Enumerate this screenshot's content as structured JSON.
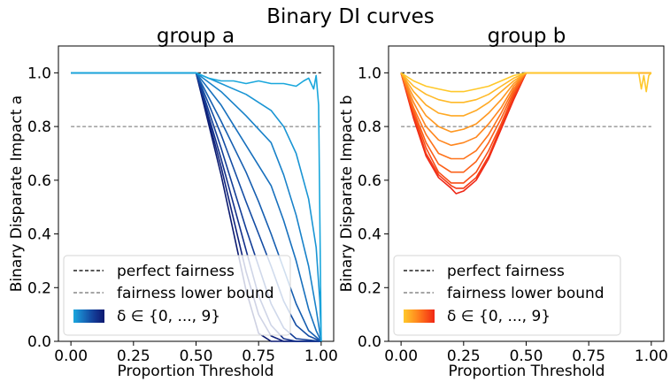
{
  "figure_title": "Binary DI curves",
  "chart_data": [
    {
      "type": "line",
      "title": "group a",
      "xlabel": "Proportion Threshold",
      "ylabel": "Binary Disparate Impact a",
      "xlim": [
        -0.05,
        1.05
      ],
      "ylim": [
        0.0,
        1.1
      ],
      "xticks": [
        "0.00",
        "0.25",
        "0.50",
        "0.75",
        "1.00"
      ],
      "yticks": [
        "0.0",
        "0.2",
        "0.4",
        "0.6",
        "0.8",
        "1.0"
      ],
      "grid": false,
      "legend_position": "lower-left",
      "legend": [
        "perfect fairness",
        "fairness lower bound",
        "δ ∈ {0, ..., 9}"
      ],
      "reference_lines": [
        {
          "name": "perfect fairness",
          "y": 1.0,
          "style": "dashed",
          "color": "#222222"
        },
        {
          "name": "fairness lower bound",
          "y": 0.8,
          "style": "dashed",
          "color": "#888888"
        }
      ],
      "colormap": [
        "#1aa7dc",
        "#1a95d4",
        "#1982c9",
        "#1870bd",
        "#165eb0",
        "#144ca3",
        "#133d96",
        "#122f89",
        "#10237c",
        "#0b1a70"
      ],
      "series": [
        {
          "x": [
            0.0,
            0.5,
            0.55,
            0.6,
            0.65,
            0.7,
            0.75,
            0.8,
            0.85,
            0.9,
            0.93,
            0.95,
            0.97,
            0.98,
            0.99,
            1.0
          ],
          "y": [
            1.0,
            1.0,
            0.98,
            0.97,
            0.97,
            0.96,
            0.97,
            0.96,
            0.96,
            0.95,
            0.97,
            0.98,
            0.94,
            0.99,
            0.88,
            0.0
          ]
        },
        {
          "x": [
            0.0,
            0.5,
            0.6,
            0.7,
            0.8,
            0.85,
            0.9,
            0.95,
            0.98,
            0.995,
            1.0
          ],
          "y": [
            1.0,
            1.0,
            0.96,
            0.92,
            0.86,
            0.8,
            0.7,
            0.53,
            0.35,
            0.15,
            0.0
          ]
        },
        {
          "x": [
            0.0,
            0.5,
            0.6,
            0.7,
            0.8,
            0.85,
            0.9,
            0.95,
            0.98,
            1.0
          ],
          "y": [
            1.0,
            1.0,
            0.93,
            0.84,
            0.74,
            0.62,
            0.47,
            0.28,
            0.12,
            0.0
          ]
        },
        {
          "x": [
            0.0,
            0.5,
            0.6,
            0.7,
            0.8,
            0.85,
            0.9,
            0.95,
            0.98,
            1.0
          ],
          "y": [
            1.0,
            1.0,
            0.88,
            0.73,
            0.58,
            0.45,
            0.3,
            0.12,
            0.04,
            0.0
          ]
        },
        {
          "x": [
            0.0,
            0.5,
            0.6,
            0.7,
            0.75,
            0.8,
            0.85,
            0.9,
            0.95,
            1.0
          ],
          "y": [
            1.0,
            1.0,
            0.82,
            0.63,
            0.52,
            0.4,
            0.27,
            0.14,
            0.04,
            0.0
          ]
        },
        {
          "x": [
            0.0,
            0.5,
            0.6,
            0.7,
            0.75,
            0.8,
            0.85,
            0.9,
            0.95,
            1.0
          ],
          "y": [
            1.0,
            1.0,
            0.77,
            0.52,
            0.4,
            0.28,
            0.15,
            0.06,
            0.02,
            0.0
          ]
        },
        {
          "x": [
            0.0,
            0.5,
            0.6,
            0.7,
            0.75,
            0.8,
            0.85,
            0.9,
            1.0
          ],
          "y": [
            1.0,
            1.0,
            0.72,
            0.42,
            0.28,
            0.14,
            0.05,
            0.01,
            0.0
          ]
        },
        {
          "x": [
            0.0,
            0.5,
            0.6,
            0.7,
            0.75,
            0.8,
            0.85,
            0.9,
            1.0
          ],
          "y": [
            1.0,
            1.0,
            0.68,
            0.34,
            0.17,
            0.06,
            0.01,
            0.0,
            0.0
          ]
        },
        {
          "x": [
            0.0,
            0.5,
            0.6,
            0.7,
            0.75,
            0.8,
            0.85,
            1.0
          ],
          "y": [
            1.0,
            1.0,
            0.65,
            0.26,
            0.1,
            0.02,
            0.0,
            0.0
          ]
        },
        {
          "x": [
            0.0,
            0.5,
            0.6,
            0.7,
            0.75,
            0.8,
            1.0
          ],
          "y": [
            1.0,
            1.0,
            0.62,
            0.19,
            0.03,
            0.0,
            0.0
          ]
        }
      ]
    },
    {
      "type": "line",
      "title": "group b",
      "xlabel": "Proportion Threshold",
      "ylabel": "Binary Disparate Impact b",
      "xlim": [
        -0.05,
        1.05
      ],
      "ylim": [
        0.0,
        1.1
      ],
      "xticks": [
        "0.00",
        "0.25",
        "0.50",
        "0.75",
        "1.00"
      ],
      "yticks": [
        "0.0",
        "0.2",
        "0.4",
        "0.6",
        "0.8",
        "1.0"
      ],
      "grid": false,
      "legend_position": "lower-left",
      "legend": [
        "perfect fairness",
        "fairness lower bound",
        "δ ∈ {0, ..., 9}"
      ],
      "reference_lines": [
        {
          "name": "perfect fairness",
          "y": 1.0,
          "style": "dashed",
          "color": "#222222"
        },
        {
          "name": "fairness lower bound",
          "y": 0.8,
          "style": "dashed",
          "color": "#888888"
        }
      ],
      "colormap": [
        "#ffc82a",
        "#ffb927",
        "#ffa924",
        "#ff9821",
        "#ff861e",
        "#fe731b",
        "#fb6019",
        "#f84d17",
        "#f43a16",
        "#ef2615"
      ],
      "series": [
        {
          "x": [
            0.0,
            0.05,
            0.1,
            0.15,
            0.2,
            0.25,
            0.3,
            0.35,
            0.4,
            0.45,
            0.5,
            0.95,
            0.96,
            0.97,
            0.98,
            0.99,
            1.0
          ],
          "y": [
            1.0,
            0.97,
            0.95,
            0.94,
            0.93,
            0.93,
            0.94,
            0.95,
            0.97,
            0.99,
            1.0,
            1.0,
            0.94,
            0.99,
            0.93,
            0.99,
            1.0
          ]
        },
        {
          "x": [
            0.0,
            0.05,
            0.1,
            0.15,
            0.2,
            0.25,
            0.3,
            0.35,
            0.4,
            0.45,
            0.5,
            1.0
          ],
          "y": [
            1.0,
            0.95,
            0.92,
            0.9,
            0.89,
            0.89,
            0.9,
            0.92,
            0.95,
            0.98,
            1.0,
            1.0
          ]
        },
        {
          "x": [
            0.0,
            0.05,
            0.1,
            0.15,
            0.2,
            0.25,
            0.3,
            0.35,
            0.4,
            0.45,
            0.5,
            1.0
          ],
          "y": [
            1.0,
            0.93,
            0.88,
            0.85,
            0.84,
            0.84,
            0.86,
            0.89,
            0.93,
            0.97,
            1.0,
            1.0
          ]
        },
        {
          "x": [
            0.0,
            0.05,
            0.1,
            0.15,
            0.2,
            0.25,
            0.3,
            0.35,
            0.4,
            0.45,
            0.5,
            1.0
          ],
          "y": [
            1.0,
            0.91,
            0.84,
            0.8,
            0.78,
            0.79,
            0.81,
            0.85,
            0.9,
            0.96,
            1.0,
            1.0
          ]
        },
        {
          "x": [
            0.0,
            0.05,
            0.1,
            0.15,
            0.2,
            0.25,
            0.3,
            0.35,
            0.4,
            0.45,
            0.5,
            1.0
          ],
          "y": [
            1.0,
            0.89,
            0.8,
            0.75,
            0.73,
            0.74,
            0.76,
            0.81,
            0.87,
            0.95,
            1.0,
            1.0
          ]
        },
        {
          "x": [
            0.0,
            0.05,
            0.1,
            0.15,
            0.2,
            0.25,
            0.3,
            0.35,
            0.4,
            0.45,
            0.5,
            1.0
          ],
          "y": [
            1.0,
            0.87,
            0.77,
            0.7,
            0.68,
            0.68,
            0.71,
            0.77,
            0.85,
            0.94,
            1.0,
            1.0
          ]
        },
        {
          "x": [
            0.0,
            0.05,
            0.1,
            0.15,
            0.2,
            0.25,
            0.3,
            0.35,
            0.4,
            0.45,
            0.5,
            1.0
          ],
          "y": [
            1.0,
            0.86,
            0.74,
            0.66,
            0.63,
            0.63,
            0.67,
            0.74,
            0.83,
            0.93,
            1.0,
            1.0
          ]
        },
        {
          "x": [
            0.0,
            0.05,
            0.1,
            0.15,
            0.2,
            0.25,
            0.3,
            0.35,
            0.4,
            0.45,
            0.5,
            1.0
          ],
          "y": [
            1.0,
            0.85,
            0.72,
            0.63,
            0.59,
            0.59,
            0.63,
            0.71,
            0.81,
            0.92,
            1.0,
            1.0
          ]
        },
        {
          "x": [
            0.0,
            0.05,
            0.1,
            0.15,
            0.2,
            0.22,
            0.25,
            0.3,
            0.35,
            0.4,
            0.45,
            0.5,
            1.0
          ],
          "y": [
            1.0,
            0.84,
            0.7,
            0.62,
            0.58,
            0.57,
            0.57,
            0.61,
            0.69,
            0.8,
            0.91,
            1.0,
            1.0
          ]
        },
        {
          "x": [
            0.0,
            0.05,
            0.1,
            0.15,
            0.2,
            0.22,
            0.25,
            0.3,
            0.35,
            0.4,
            0.45,
            0.5,
            1.0
          ],
          "y": [
            1.0,
            0.83,
            0.69,
            0.61,
            0.57,
            0.55,
            0.56,
            0.6,
            0.68,
            0.79,
            0.9,
            1.0,
            1.0
          ]
        }
      ]
    }
  ]
}
